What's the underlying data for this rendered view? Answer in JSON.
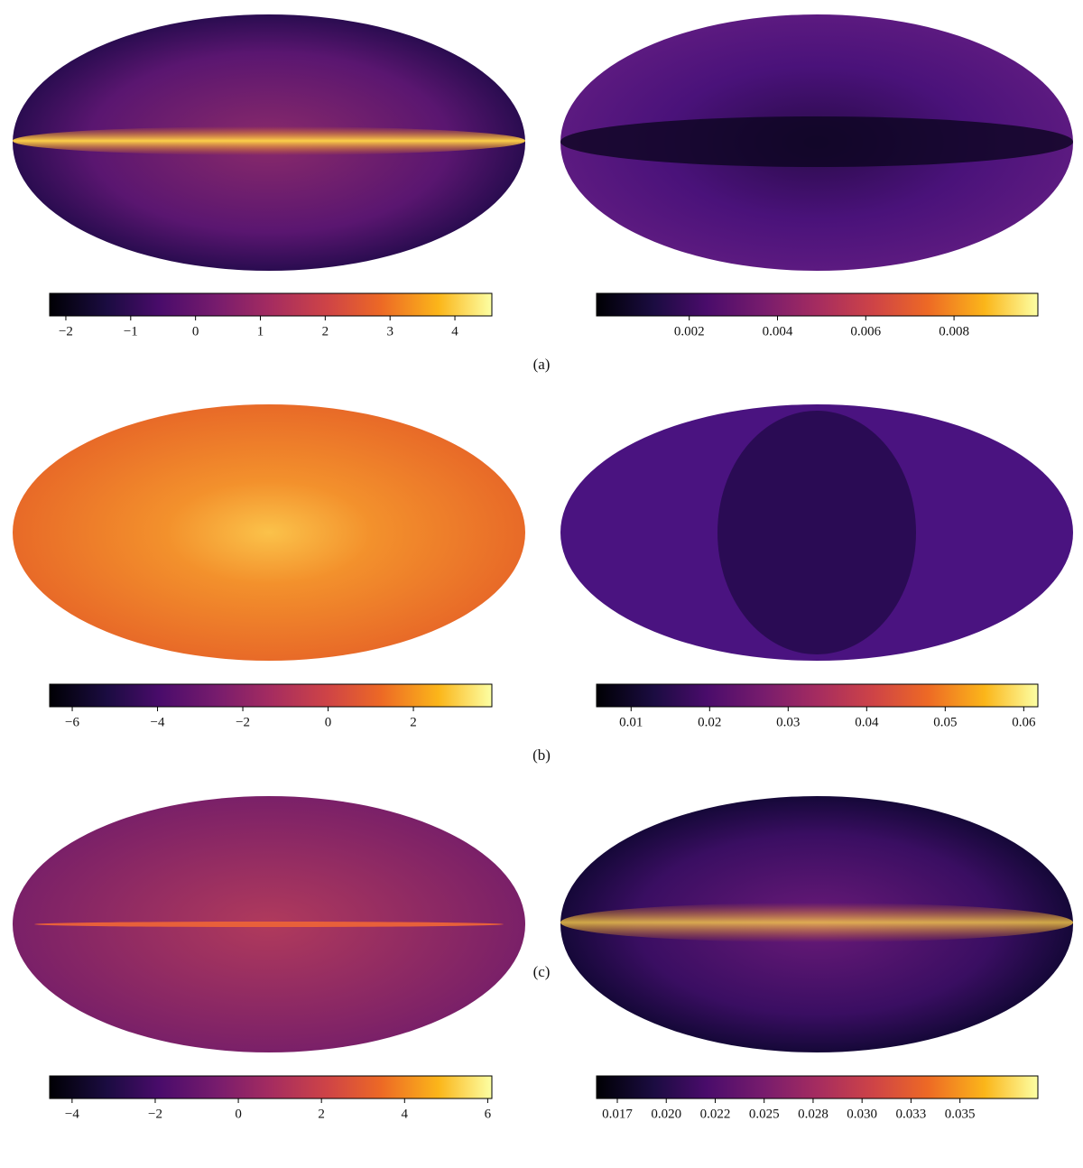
{
  "captions": [
    "(a)",
    "(b)",
    "(c)"
  ],
  "chart_data": [
    {
      "type": "colorbar",
      "colormap": "inferno",
      "xlim": [
        -2.25,
        4.57
      ],
      "xticks": [
        {
          "value": -2,
          "label": "−2"
        },
        {
          "value": -1,
          "label": "−1"
        },
        0,
        1,
        2,
        3,
        4
      ]
    },
    {
      "type": "colorbar",
      "colormap": "inferno",
      "xlim": [
        -0.0001,
        0.0099
      ],
      "xticks": [
        0.002,
        0.004,
        0.006,
        0.008
      ]
    },
    {
      "type": "colorbar",
      "colormap": "inferno",
      "xlim": [
        -6.53,
        3.84
      ],
      "xticks": [
        {
          "value": -6,
          "label": "−6"
        },
        {
          "value": -4,
          "label": "−4"
        },
        {
          "value": -2,
          "label": "−2"
        },
        0,
        2
      ]
    },
    {
      "type": "colorbar",
      "colormap": "inferno",
      "xlim": [
        0.0056,
        0.0618
      ],
      "xticks": [
        0.01,
        0.02,
        0.03,
        0.04,
        0.05,
        0.06
      ]
    },
    {
      "type": "colorbar",
      "colormap": "inferno",
      "xlim": [
        -4.54,
        6.1
      ],
      "xticks": [
        {
          "value": -4,
          "label": "−4"
        },
        {
          "value": -2,
          "label": "−2"
        },
        0,
        2,
        4,
        6
      ]
    },
    {
      "type": "colorbar",
      "colormap": "inferno",
      "xlim": [
        0.01644,
        0.03898
      ],
      "xticks": [
        {
          "value": 0.0175,
          "label": "0.017"
        },
        {
          "value": 0.02,
          "label": "0.020"
        },
        {
          "value": 0.0225,
          "label": "0.022"
        },
        0.025,
        {
          "value": 0.0275,
          "label": "0.028"
        },
        {
          "value": 0.03,
          "label": "0.030"
        },
        {
          "value": 0.0325,
          "label": "0.033"
        },
        0.035
      ]
    }
  ]
}
